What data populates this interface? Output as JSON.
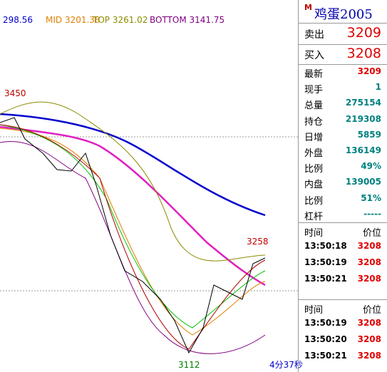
{
  "indicator": {
    "ma": "298.56",
    "mid": "MID 3201.38",
    "top": "TOP 3261.02",
    "bottom": "BOTTOM 3141.75"
  },
  "chart_labels": {
    "high": "3450",
    "recent_high": "3258",
    "low": "3112"
  },
  "timer": "4分37秒",
  "quote": {
    "market": "M",
    "name": "鸡蛋2005",
    "sell_label": "卖出",
    "sell": "3209",
    "buy_label": "买入",
    "buy": "3208",
    "stats": [
      {
        "label": "最新",
        "value": "3209"
      },
      {
        "label": "现手",
        "value": "1"
      },
      {
        "label": "总量",
        "value": "275154"
      },
      {
        "label": "持仓",
        "value": "219308"
      },
      {
        "label": "日增",
        "value": "5859"
      },
      {
        "label": "外盘",
        "value": "136149"
      },
      {
        "label": "比例",
        "value": "49%"
      },
      {
        "label": "内盘",
        "value": "139005"
      },
      {
        "label": "比例",
        "value": "51%"
      },
      {
        "label": "杠杆",
        "value": "-----"
      }
    ]
  },
  "trades": [
    {
      "headers": [
        "时间",
        "价位"
      ],
      "rows": [
        [
          "13:50:18",
          "3208"
        ],
        [
          "13:50:19",
          "3208"
        ],
        [
          "13:50:21",
          "3208"
        ]
      ]
    },
    {
      "headers": [
        "时间",
        "价位"
      ],
      "rows": [
        [
          "13:50:19",
          "3208"
        ],
        [
          "13:50:20",
          "3208"
        ],
        [
          "13:50:21",
          "3208"
        ]
      ]
    }
  ]
}
